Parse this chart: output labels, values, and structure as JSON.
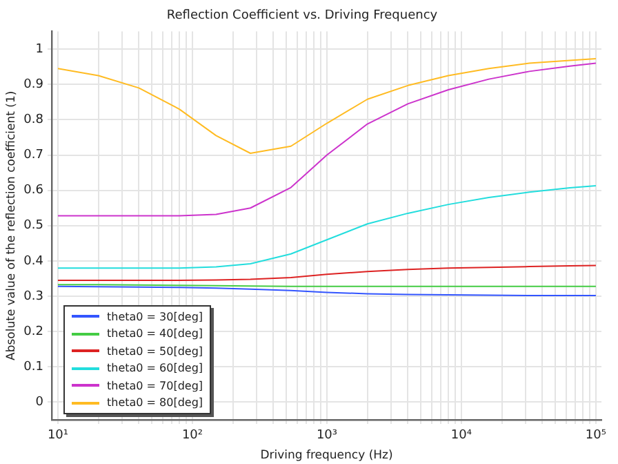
{
  "chart_data": {
    "type": "line",
    "title": "Reflection Coefficient vs. Driving Frequency",
    "xlabel": "Driving frequency (Hz)",
    "ylabel": "Absolute value of the reflection coefficient (1)",
    "x": [
      10,
      20,
      40,
      80,
      150,
      270,
      540,
      1000,
      2000,
      4000,
      8000,
      16000,
      32000,
      64000,
      100000
    ],
    "series": [
      {
        "name": "theta0 = 30[deg]",
        "color": "#3355ff",
        "values": [
          0.328,
          0.327,
          0.326,
          0.325,
          0.323,
          0.32,
          0.316,
          0.311,
          0.307,
          0.305,
          0.304,
          0.303,
          0.302,
          0.302,
          0.302
        ]
      },
      {
        "name": "theta0 = 40[deg]",
        "color": "#44cc44",
        "values": [
          0.333,
          0.333,
          0.332,
          0.331,
          0.33,
          0.329,
          0.328,
          0.328,
          0.328,
          0.328,
          0.328,
          0.328,
          0.328,
          0.328,
          0.328
        ]
      },
      {
        "name": "theta0 = 50[deg]",
        "color": "#dd2222",
        "values": [
          0.345,
          0.345,
          0.345,
          0.345,
          0.346,
          0.348,
          0.353,
          0.362,
          0.37,
          0.376,
          0.38,
          0.382,
          0.384,
          0.386,
          0.387
        ]
      },
      {
        "name": "theta0 = 60[deg]",
        "color": "#22dddd",
        "values": [
          0.38,
          0.38,
          0.38,
          0.38,
          0.383,
          0.392,
          0.42,
          0.46,
          0.505,
          0.535,
          0.56,
          0.58,
          0.595,
          0.607,
          0.613
        ]
      },
      {
        "name": "theta0 = 70[deg]",
        "color": "#cc33cc",
        "values": [
          0.528,
          0.528,
          0.528,
          0.528,
          0.532,
          0.55,
          0.608,
          0.7,
          0.788,
          0.845,
          0.885,
          0.915,
          0.937,
          0.952,
          0.96
        ]
      },
      {
        "name": "theta0 = 80[deg]",
        "color": "#ffbb22",
        "values": [
          0.945,
          0.925,
          0.89,
          0.83,
          0.755,
          0.705,
          0.725,
          0.79,
          0.858,
          0.897,
          0.925,
          0.945,
          0.96,
          0.968,
          0.973
        ]
      }
    ],
    "log": "x",
    "xlim": [
      9,
      110000
    ],
    "xticks": [
      {
        "value": 10,
        "label": "10¹"
      },
      {
        "value": 20,
        "label": null
      },
      {
        "value": 30,
        "label": null
      },
      {
        "value": 40,
        "label": null
      },
      {
        "value": 50,
        "label": null
      },
      {
        "value": 60,
        "label": null
      },
      {
        "value": 70,
        "label": null
      },
      {
        "value": 80,
        "label": null
      },
      {
        "value": 90,
        "label": null
      },
      {
        "value": 100,
        "label": "10²"
      },
      {
        "value": 200,
        "label": null
      },
      {
        "value": 300,
        "label": null
      },
      {
        "value": 400,
        "label": null
      },
      {
        "value": 500,
        "label": null
      },
      {
        "value": 600,
        "label": null
      },
      {
        "value": 700,
        "label": null
      },
      {
        "value": 800,
        "label": null
      },
      {
        "value": 900,
        "label": null
      },
      {
        "value": 1000,
        "label": "10³"
      },
      {
        "value": 2000,
        "label": null
      },
      {
        "value": 3000,
        "label": null
      },
      {
        "value": 4000,
        "label": null
      },
      {
        "value": 5000,
        "label": null
      },
      {
        "value": 6000,
        "label": null
      },
      {
        "value": 7000,
        "label": null
      },
      {
        "value": 8000,
        "label": null
      },
      {
        "value": 9000,
        "label": null
      },
      {
        "value": 10000,
        "label": "10⁴"
      },
      {
        "value": 20000,
        "label": null
      },
      {
        "value": 30000,
        "label": null
      },
      {
        "value": 40000,
        "label": null
      },
      {
        "value": 50000,
        "label": null
      },
      {
        "value": 60000,
        "label": null
      },
      {
        "value": 70000,
        "label": null
      },
      {
        "value": 80000,
        "label": null
      },
      {
        "value": 90000,
        "label": null
      },
      {
        "value": 100000,
        "label": "10⁵"
      }
    ],
    "ylim": [
      -0.05,
      1.05
    ],
    "yticks": [
      0,
      0.1,
      0.2,
      0.3,
      0.4,
      0.5,
      0.6,
      0.7,
      0.8,
      0.9,
      1
    ],
    "grid": true,
    "legend": "bottom left",
    "marker": "none",
    "line_style": "solid"
  }
}
